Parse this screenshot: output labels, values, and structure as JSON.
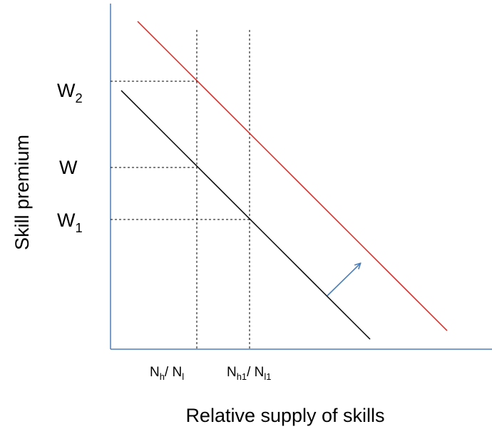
{
  "axes": {
    "y_label": "Skill premium",
    "x_label": "Relative supply of skills"
  },
  "y_markers": [
    {
      "base": "W",
      "sub": "2"
    },
    {
      "base": "W"
    },
    {
      "base": "W",
      "sub": "1"
    }
  ],
  "x_markers": [
    {
      "n1": "N",
      "s1": "h",
      "n2": "/ N",
      "s2": "l"
    },
    {
      "n1": "N",
      "s1": "h1",
      "n2": "/ N",
      "s2": "l1"
    }
  ]
}
